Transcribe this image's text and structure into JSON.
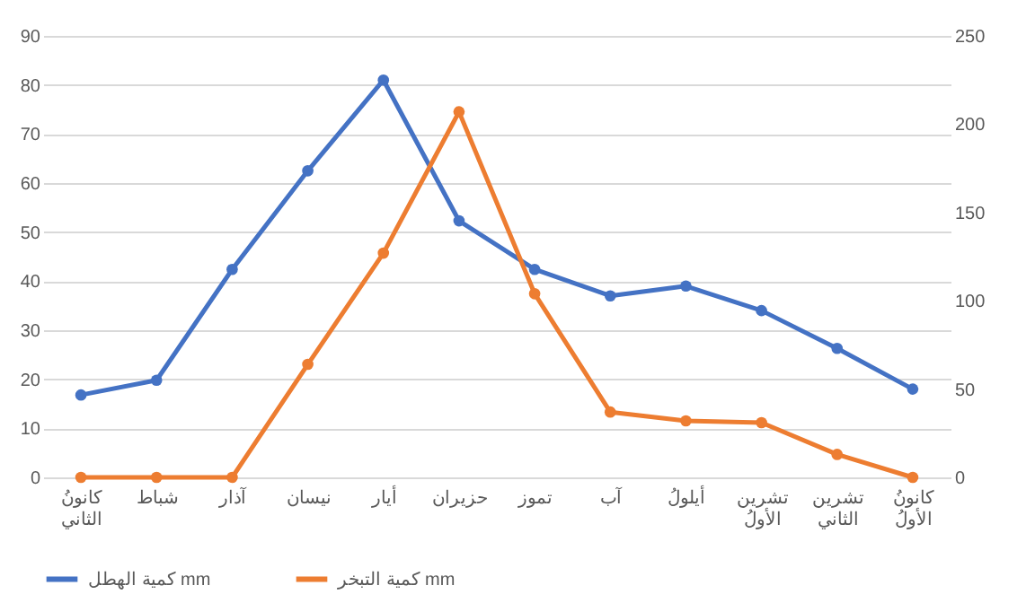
{
  "chart_data": {
    "type": "line",
    "categories": [
      "كانونُ\nالثاني",
      "شباط",
      "آذار",
      "نيسان",
      "أيار",
      "حزيران",
      "تموز",
      "آب",
      "أيلولُ",
      "تشرين\nالأولُ",
      "تشرين\nالثاني",
      "كانونُ\nالأولُ"
    ],
    "series": [
      {
        "name": "كمية الهطل mm",
        "color": "#4472c4",
        "values": [
          16.8,
          19.8,
          42.4,
          62.5,
          81,
          52.3,
          42.4,
          37,
          39,
          34,
          26.3,
          18
        ]
      },
      {
        "name": "كمية التبخر mm",
        "color": "#ed7d31",
        "axis": "y2",
        "values": [
          0,
          0,
          0,
          64,
          127,
          207,
          104,
          37,
          32,
          31,
          13,
          0
        ]
      }
    ],
    "ylim": [
      0,
      90
    ],
    "yticks": [
      0,
      10,
      20,
      30,
      40,
      50,
      60,
      70,
      80,
      90
    ],
    "y2lim": [
      0,
      250
    ],
    "y2ticks": [
      0,
      50,
      100,
      150,
      200,
      250
    ],
    "grid": "y",
    "legend": "bottom",
    "marker": "circle",
    "line_style": "solid"
  }
}
